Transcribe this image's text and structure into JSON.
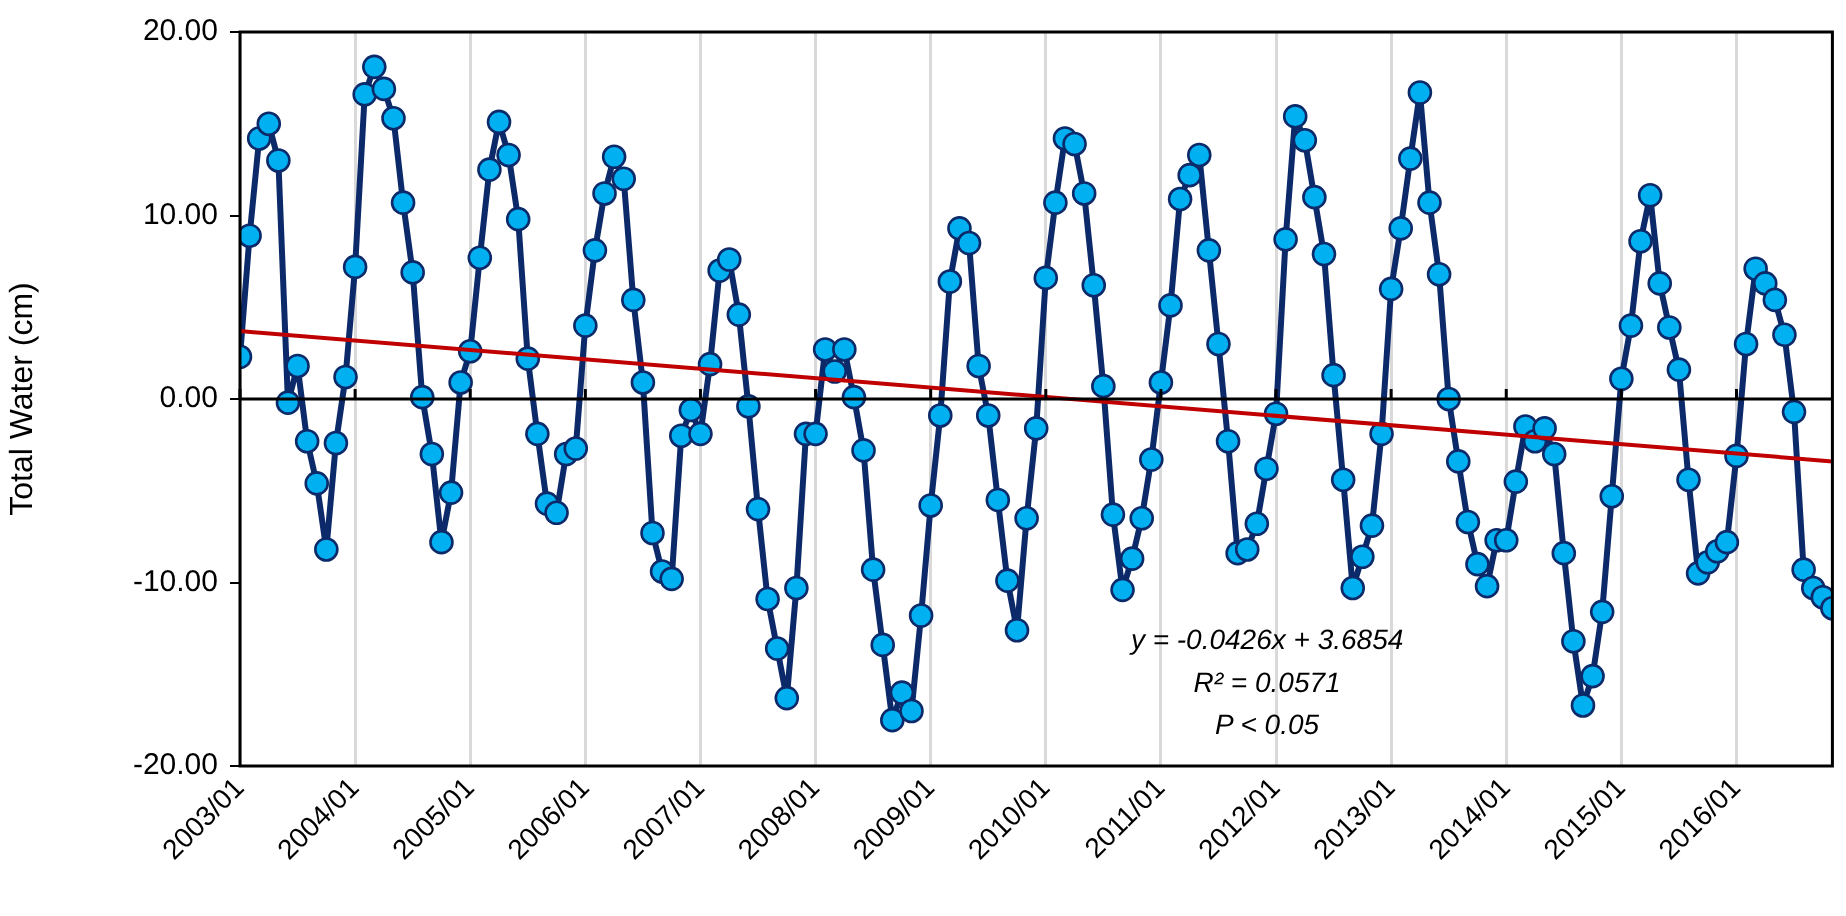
{
  "chart_data": {
    "type": "line",
    "ylabel": "Total Water (cm)",
    "marker": "circle",
    "line_style": "solid",
    "legend": false,
    "grid": "x",
    "xlim": [
      "2003-01",
      "2016-11"
    ],
    "xticks": [
      {
        "value": "2003-01",
        "label": "2003/01"
      },
      {
        "value": "2004-01",
        "label": "2004/01"
      },
      {
        "value": "2005-01",
        "label": "2005/01"
      },
      {
        "value": "2006-01",
        "label": "2006/01"
      },
      {
        "value": "2007-01",
        "label": "2007/01"
      },
      {
        "value": "2008-01",
        "label": "2008/01"
      },
      {
        "value": "2009-01",
        "label": "2009/01"
      },
      {
        "value": "2010-01",
        "label": "2010/01"
      },
      {
        "value": "2011-01",
        "label": "2011/01"
      },
      {
        "value": "2012-01",
        "label": "2012/01"
      },
      {
        "value": "2013-01",
        "label": "2013/01"
      },
      {
        "value": "2014-01",
        "label": "2014/01"
      },
      {
        "value": "2015-01",
        "label": "2015/01"
      },
      {
        "value": "2016-01",
        "label": "2016/01"
      }
    ],
    "ylim": [
      -20,
      20
    ],
    "yticks": [
      {
        "value": -20,
        "label": "-20.00"
      },
      {
        "value": -10,
        "label": "-10.00"
      },
      {
        "value": 0,
        "label": "0.00"
      },
      {
        "value": 10,
        "label": "10.00"
      },
      {
        "value": 20,
        "label": "20.00"
      }
    ],
    "annotations": [
      "y = -0.0426x + 3.6854",
      "R² = 0.0571",
      "P < 0.05"
    ],
    "series": [
      {
        "color": "#00b0f0",
        "x": [
          "2003-01",
          "2003-02",
          "2003-03",
          "2003-04",
          "2003-05",
          "2003-06",
          "2003-07",
          "2003-08",
          "2003-09",
          "2003-10",
          "2003-11",
          "2003-12",
          "2004-01",
          "2004-02",
          "2004-03",
          "2004-04",
          "2004-05",
          "2004-06",
          "2004-07",
          "2004-08",
          "2004-09",
          "2004-10",
          "2004-11",
          "2004-12",
          "2005-01",
          "2005-02",
          "2005-03",
          "2005-04",
          "2005-05",
          "2005-06",
          "2005-07",
          "2005-08",
          "2005-09",
          "2005-10",
          "2005-11",
          "2005-12",
          "2006-01",
          "2006-02",
          "2006-03",
          "2006-04",
          "2006-05",
          "2006-06",
          "2006-07",
          "2006-08",
          "2006-09",
          "2006-10",
          "2006-11",
          "2006-12",
          "2007-01",
          "2007-02",
          "2007-03",
          "2007-04",
          "2007-05",
          "2007-06",
          "2007-07",
          "2007-08",
          "2007-09",
          "2007-10",
          "2007-11",
          "2007-12",
          "2008-01",
          "2008-02",
          "2008-03",
          "2008-04",
          "2008-05",
          "2008-06",
          "2008-07",
          "2008-08",
          "2008-09",
          "2008-10",
          "2008-11",
          "2008-12",
          "2009-01",
          "2009-02",
          "2009-03",
          "2009-04",
          "2009-05",
          "2009-06",
          "2009-07",
          "2009-08",
          "2009-09",
          "2009-10",
          "2009-11",
          "2009-12",
          "2010-01",
          "2010-02",
          "2010-03",
          "2010-04",
          "2010-05",
          "2010-06",
          "2010-07",
          "2010-08",
          "2010-09",
          "2010-10",
          "2010-11",
          "2010-12",
          "2011-01",
          "2011-02",
          "2011-03",
          "2011-04",
          "2011-05",
          "2011-06",
          "2011-07",
          "2011-08",
          "2011-09",
          "2011-10",
          "2011-11",
          "2011-12",
          "2012-01",
          "2012-02",
          "2012-03",
          "2012-04",
          "2012-05",
          "2012-06",
          "2012-07",
          "2012-08",
          "2012-09",
          "2012-10",
          "2012-11",
          "2012-12",
          "2013-01",
          "2013-02",
          "2013-03",
          "2013-04",
          "2013-05",
          "2013-06",
          "2013-07",
          "2013-08",
          "2013-09",
          "2013-10",
          "2013-11",
          "2013-12",
          "2014-01",
          "2014-02",
          "2014-03",
          "2014-04",
          "2014-05",
          "2014-06",
          "2014-07",
          "2014-08",
          "2014-09",
          "2014-10",
          "2014-11",
          "2014-12",
          "2015-01",
          "2015-02",
          "2015-03",
          "2015-04",
          "2015-05",
          "2015-06",
          "2015-07",
          "2015-08",
          "2015-09",
          "2015-10",
          "2015-11",
          "2015-12",
          "2016-01",
          "2016-02",
          "2016-03",
          "2016-04",
          "2016-05",
          "2016-06",
          "2016-07",
          "2016-08",
          "2016-09",
          "2016-10",
          "2016-11"
        ],
        "values": [
          2.3,
          8.9,
          14.2,
          15.0,
          13.0,
          -0.2,
          1.8,
          -2.3,
          -4.6,
          -8.2,
          -2.4,
          1.2,
          7.2,
          16.6,
          18.1,
          16.9,
          15.3,
          10.7,
          6.9,
          0.1,
          -3.0,
          -7.8,
          -5.1,
          0.9,
          2.6,
          7.7,
          12.5,
          15.1,
          13.3,
          9.8,
          2.2,
          -1.9,
          -5.7,
          -6.2,
          -3.0,
          -2.7,
          4.0,
          8.1,
          11.2,
          13.2,
          12.0,
          5.4,
          0.9,
          -7.3,
          -9.4,
          -9.8,
          -2.0,
          -0.6,
          -1.9,
          1.9,
          7.0,
          7.6,
          4.6,
          -0.4,
          -6.0,
          -10.9,
          -13.6,
          -16.3,
          -10.3,
          -1.9,
          -1.9,
          2.7,
          1.5,
          2.7,
          0.1,
          -2.8,
          -9.3,
          -13.4,
          -17.5,
          -16.0,
          -17.0,
          -11.8,
          -5.8,
          -0.9,
          6.4,
          9.3,
          8.5,
          1.8,
          -0.9,
          -5.5,
          -9.9,
          -12.6,
          -6.5,
          -1.6,
          6.6,
          10.7,
          14.2,
          13.9,
          11.2,
          6.2,
          0.7,
          -6.3,
          -10.4,
          -8.7,
          -6.5,
          -3.3,
          0.9,
          5.1,
          10.9,
          12.2,
          13.3,
          8.1,
          3.0,
          -2.3,
          -8.4,
          -8.2,
          -6.8,
          -3.8,
          -0.8,
          8.7,
          15.4,
          14.1,
          11.0,
          7.9,
          1.3,
          -4.4,
          -10.3,
          -8.6,
          -6.9,
          -1.9,
          6.0,
          9.3,
          13.1,
          16.7,
          10.7,
          6.8,
          0.0,
          -3.4,
          -6.7,
          -9.0,
          -10.2,
          -7.7,
          -7.7,
          -4.5,
          -1.5,
          -2.3,
          -1.6,
          -3.0,
          -8.4,
          -13.2,
          -16.7,
          -15.1,
          -11.6,
          -5.3,
          1.1,
          4.0,
          8.6,
          11.1,
          6.3,
          3.9,
          1.6,
          -4.4,
          -9.5,
          -8.9,
          -8.3,
          -7.8,
          -3.1,
          3.0,
          7.1,
          6.3,
          5.4,
          3.5,
          -0.7,
          -9.3,
          -10.3,
          -10.8,
          -11.4
        ]
      },
      {
        "color": "#c00000",
        "marker": "none",
        "x": [
          "2003-01",
          "2016-11"
        ],
        "values": [
          3.7,
          -3.4
        ]
      }
    ]
  }
}
